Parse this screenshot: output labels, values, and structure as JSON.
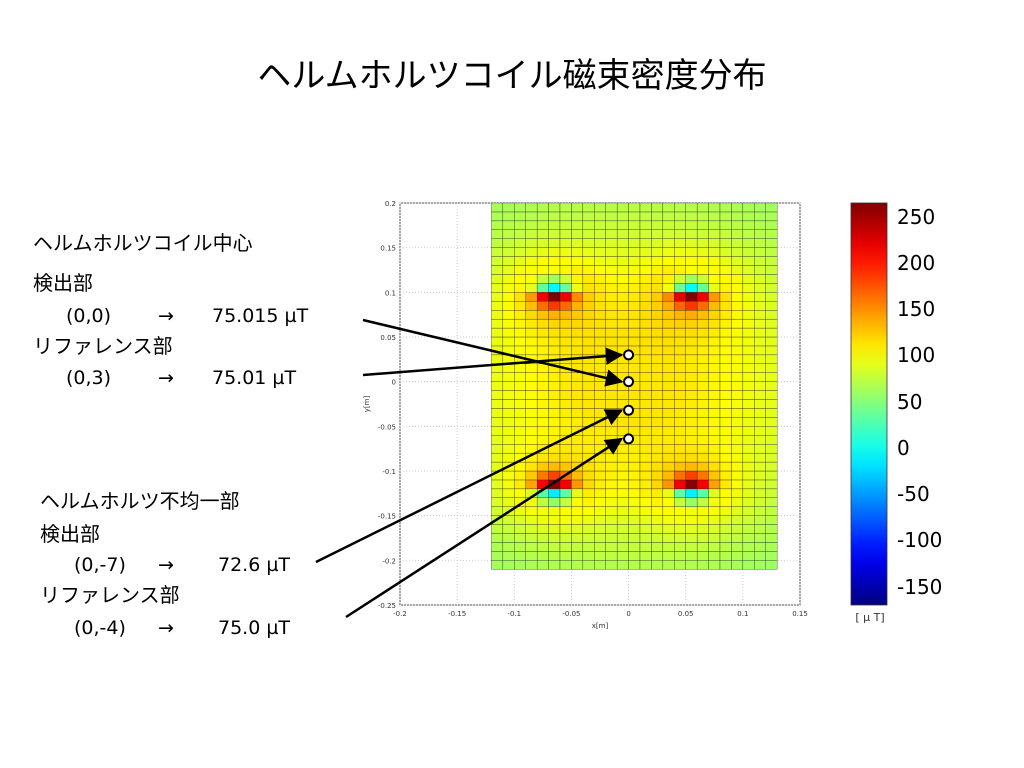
{
  "title": "ヘルムホルツコイル磁束密度分布",
  "annotations": {
    "center_heading": "ヘルムホルツコイル中心",
    "center_detect": "検出部",
    "center_detect_pos": "(0,0)",
    "center_detect_arrow": "→",
    "center_detect_val": "75.015 µT",
    "center_ref": "リファレンス部",
    "center_ref_pos": "(0,3)",
    "center_ref_arrow": "→",
    "center_ref_val": "75.01 µT",
    "nonuni_heading": "ヘルムホルツ不均一部",
    "nonuni_detect": "検出部",
    "nonuni_detect_pos": "(0,-7)",
    "nonuni_detect_arrow": "→",
    "nonuni_detect_val": "72.6  µT",
    "nonuni_ref": "リファレンス部",
    "nonuni_ref_pos": "(0,-4)",
    "nonuni_ref_arrow": "→",
    "nonuni_ref_val": "75.0  µT"
  },
  "chart_data": {
    "type": "heatmap",
    "xlabel": "x[m]",
    "ylabel": "y[m]",
    "xlim": [
      -0.2,
      0.15
    ],
    "ylim": [
      -0.25,
      0.2
    ],
    "xticks": [
      "-0.2",
      "-0.15",
      "-0.1",
      "-0.05",
      "0",
      "0.05",
      "0.1",
      "0.15"
    ],
    "yticks": [
      "0.2",
      "0.15",
      "0.1",
      "0.05",
      "0",
      "-0.05",
      "-0.1",
      "-0.15",
      "-0.2",
      "-0.25"
    ],
    "field_extent": {
      "x": [
        -0.12,
        0.13
      ],
      "y": [
        -0.21,
        0.2
      ]
    },
    "grid_step": 0.01,
    "coil_centers": [
      {
        "x": -0.065,
        "y": 0.1
      },
      {
        "x": 0.055,
        "y": 0.1
      },
      {
        "x": -0.065,
        "y": -0.12
      },
      {
        "x": 0.055,
        "y": -0.12
      }
    ],
    "measurement_points": [
      {
        "label": "(0,3)",
        "x": 0.0,
        "y": 0.03,
        "value_uT": 75.01
      },
      {
        "label": "(0,0)",
        "x": 0.0,
        "y": 0.0,
        "value_uT": 75.015
      },
      {
        "label": "(0,-4)",
        "x": 0.0,
        "y": -0.032,
        "value_uT": 75.0
      },
      {
        "label": "(0,-7)",
        "x": 0.0,
        "y": -0.064,
        "value_uT": 72.6
      }
    ],
    "colorbar": {
      "ticks": [
        "250",
        "200",
        "150",
        "100",
        "50",
        "0",
        "-50",
        "-100",
        "-150"
      ],
      "range": [
        -170,
        265
      ],
      "unit": "[ μ T]",
      "colormap": "jet"
    }
  }
}
